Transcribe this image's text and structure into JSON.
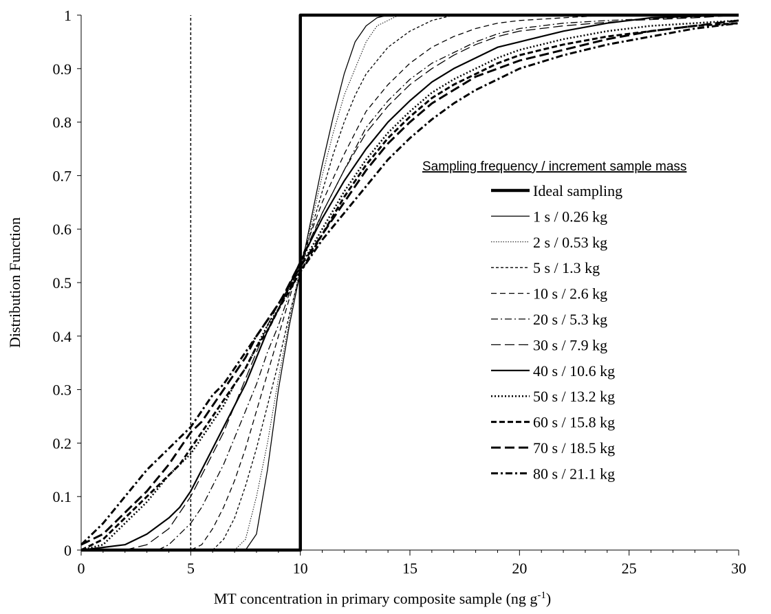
{
  "chart_data": {
    "type": "line",
    "xlabel": "MT concentration in primary composite sample (ng g",
    "xlabel_superscript": "-1",
    "xlabel_suffix": ")",
    "ylabel": "Distribution Function",
    "xlim": [
      0,
      30
    ],
    "ylim": [
      0,
      1
    ],
    "xticks": [
      "0",
      "5",
      "10",
      "15",
      "20",
      "25",
      "30"
    ],
    "yticks": [
      "0",
      "0.1",
      "0.2",
      "0.3",
      "0.4",
      "0.5",
      "0.6",
      "0.7",
      "0.8",
      "0.9",
      "1"
    ],
    "grid": false,
    "legend_title": "Sampling frequency / increment sample mass",
    "legend_position": "right",
    "reference_line": {
      "x": 5,
      "style": "dashed"
    },
    "series": [
      {
        "name": "Ideal sampling",
        "style": "ideal",
        "points": [
          [
            0,
            0
          ],
          [
            10,
            0
          ],
          [
            10,
            1
          ],
          [
            30,
            1
          ]
        ]
      },
      {
        "name": "1 s / 0.26 kg",
        "style": "thin-solid",
        "points": [
          [
            7.5,
            0
          ],
          [
            8,
            0.03
          ],
          [
            8.5,
            0.15
          ],
          [
            9,
            0.3
          ],
          [
            9.5,
            0.42
          ],
          [
            10,
            0.52
          ],
          [
            10.5,
            0.62
          ],
          [
            11,
            0.72
          ],
          [
            11.5,
            0.81
          ],
          [
            12,
            0.89
          ],
          [
            12.5,
            0.95
          ],
          [
            13,
            0.98
          ],
          [
            13.5,
            0.995
          ],
          [
            14,
            1
          ],
          [
            30,
            1
          ]
        ]
      },
      {
        "name": "2 s / 0.53 kg",
        "style": "dotted-thin",
        "points": [
          [
            7,
            0
          ],
          [
            7.5,
            0.02
          ],
          [
            8,
            0.1
          ],
          [
            8.5,
            0.2
          ],
          [
            9,
            0.32
          ],
          [
            9.5,
            0.43
          ],
          [
            10,
            0.53
          ],
          [
            10.5,
            0.61
          ],
          [
            11,
            0.7
          ],
          [
            11.5,
            0.78
          ],
          [
            12,
            0.85
          ],
          [
            12.5,
            0.9
          ],
          [
            13,
            0.95
          ],
          [
            13.5,
            0.98
          ],
          [
            14,
            0.99
          ],
          [
            14.5,
            1
          ],
          [
            30,
            1
          ]
        ]
      },
      {
        "name": "5 s / 1.3 kg",
        "style": "dashed-fine",
        "points": [
          [
            6,
            0
          ],
          [
            6.5,
            0.02
          ],
          [
            7,
            0.06
          ],
          [
            7.5,
            0.12
          ],
          [
            8,
            0.19
          ],
          [
            8.5,
            0.27
          ],
          [
            9,
            0.35
          ],
          [
            9.5,
            0.44
          ],
          [
            10,
            0.52
          ],
          [
            10.5,
            0.6
          ],
          [
            11,
            0.67
          ],
          [
            11.5,
            0.74
          ],
          [
            12,
            0.8
          ],
          [
            12.5,
            0.85
          ],
          [
            13,
            0.89
          ],
          [
            14,
            0.94
          ],
          [
            15,
            0.97
          ],
          [
            16,
            0.99
          ],
          [
            17,
            1
          ],
          [
            30,
            1
          ]
        ]
      },
      {
        "name": "10 s / 2.6 kg",
        "style": "dashed-med",
        "points": [
          [
            5,
            0
          ],
          [
            5.5,
            0.01
          ],
          [
            6,
            0.04
          ],
          [
            6.5,
            0.08
          ],
          [
            7,
            0.13
          ],
          [
            7.5,
            0.19
          ],
          [
            8,
            0.26
          ],
          [
            8.5,
            0.33
          ],
          [
            9,
            0.4
          ],
          [
            9.5,
            0.47
          ],
          [
            10,
            0.54
          ],
          [
            11,
            0.65
          ],
          [
            12,
            0.74
          ],
          [
            13,
            0.82
          ],
          [
            14,
            0.87
          ],
          [
            15,
            0.91
          ],
          [
            16,
            0.94
          ],
          [
            17,
            0.96
          ],
          [
            18,
            0.975
          ],
          [
            19,
            0.985
          ],
          [
            20,
            0.99
          ],
          [
            22,
            0.995
          ],
          [
            24,
            1
          ],
          [
            30,
            1
          ]
        ]
      },
      {
        "name": "20 s / 5.3 kg",
        "style": "dashdot-thin",
        "points": [
          [
            3.5,
            0
          ],
          [
            4,
            0.01
          ],
          [
            4.5,
            0.03
          ],
          [
            5,
            0.05
          ],
          [
            5.5,
            0.08
          ],
          [
            6,
            0.12
          ],
          [
            6.5,
            0.16
          ],
          [
            7,
            0.21
          ],
          [
            7.5,
            0.26
          ],
          [
            8,
            0.31
          ],
          [
            8.5,
            0.37
          ],
          [
            9,
            0.42
          ],
          [
            9.5,
            0.48
          ],
          [
            10,
            0.53
          ],
          [
            11,
            0.63
          ],
          [
            12,
            0.71
          ],
          [
            13,
            0.79
          ],
          [
            14,
            0.84
          ],
          [
            15,
            0.88
          ],
          [
            16,
            0.91
          ],
          [
            17,
            0.93
          ],
          [
            18,
            0.95
          ],
          [
            19,
            0.965
          ],
          [
            20,
            0.975
          ],
          [
            22,
            0.985
          ],
          [
            24,
            0.99
          ],
          [
            27,
            0.995
          ],
          [
            30,
            1
          ]
        ]
      },
      {
        "name": "30 s / 7.9 kg",
        "style": "longdash-thin",
        "points": [
          [
            2,
            0
          ],
          [
            3,
            0.01
          ],
          [
            4,
            0.04
          ],
          [
            4.5,
            0.07
          ],
          [
            5,
            0.1
          ],
          [
            5.5,
            0.14
          ],
          [
            6,
            0.18
          ],
          [
            6.5,
            0.22
          ],
          [
            7,
            0.27
          ],
          [
            7.5,
            0.32
          ],
          [
            8,
            0.37
          ],
          [
            8.5,
            0.42
          ],
          [
            9,
            0.46
          ],
          [
            10,
            0.54
          ],
          [
            11,
            0.63
          ],
          [
            12,
            0.71
          ],
          [
            13,
            0.78
          ],
          [
            14,
            0.83
          ],
          [
            15,
            0.87
          ],
          [
            16,
            0.9
          ],
          [
            17,
            0.925
          ],
          [
            18,
            0.945
          ],
          [
            19,
            0.96
          ],
          [
            20,
            0.97
          ],
          [
            22,
            0.98
          ],
          [
            25,
            0.99
          ],
          [
            28,
            0.995
          ],
          [
            30,
            1
          ]
        ]
      },
      {
        "name": "40 s / 10.6 kg",
        "style": "solid-med",
        "points": [
          [
            0,
            0
          ],
          [
            1,
            0.005
          ],
          [
            2,
            0.01
          ],
          [
            3,
            0.03
          ],
          [
            4,
            0.06
          ],
          [
            4.5,
            0.08
          ],
          [
            5,
            0.11
          ],
          [
            5.5,
            0.15
          ],
          [
            6,
            0.19
          ],
          [
            6.5,
            0.23
          ],
          [
            7,
            0.27
          ],
          [
            7.5,
            0.31
          ],
          [
            8,
            0.36
          ],
          [
            8.5,
            0.41
          ],
          [
            9,
            0.45
          ],
          [
            10,
            0.54
          ],
          [
            11,
            0.62
          ],
          [
            12,
            0.69
          ],
          [
            13,
            0.75
          ],
          [
            14,
            0.8
          ],
          [
            15,
            0.84
          ],
          [
            16,
            0.875
          ],
          [
            17,
            0.9
          ],
          [
            18,
            0.92
          ],
          [
            19,
            0.94
          ],
          [
            20,
            0.95
          ],
          [
            21,
            0.96
          ],
          [
            22,
            0.97
          ],
          [
            24,
            0.985
          ],
          [
            26,
            0.995
          ],
          [
            28,
            0.998
          ],
          [
            30,
            1
          ]
        ]
      },
      {
        "name": "50 s / 13.2 kg",
        "style": "dotted-med",
        "points": [
          [
            0,
            0
          ],
          [
            1,
            0.01
          ],
          [
            2,
            0.05
          ],
          [
            3,
            0.09
          ],
          [
            4,
            0.14
          ],
          [
            5,
            0.18
          ],
          [
            5.5,
            0.21
          ],
          [
            6,
            0.24
          ],
          [
            6.5,
            0.27
          ],
          [
            7,
            0.31
          ],
          [
            7.5,
            0.34
          ],
          [
            8,
            0.38
          ],
          [
            8.5,
            0.42
          ],
          [
            9,
            0.45
          ],
          [
            10,
            0.53
          ],
          [
            11,
            0.6
          ],
          [
            12,
            0.67
          ],
          [
            13,
            0.73
          ],
          [
            14,
            0.78
          ],
          [
            15,
            0.82
          ],
          [
            16,
            0.855
          ],
          [
            17,
            0.88
          ],
          [
            18,
            0.9
          ],
          [
            19,
            0.92
          ],
          [
            20,
            0.935
          ],
          [
            22,
            0.955
          ],
          [
            24,
            0.97
          ],
          [
            26,
            0.98
          ],
          [
            28,
            0.985
          ],
          [
            30,
            0.99
          ]
        ]
      },
      {
        "name": "60 s / 15.8 kg",
        "style": "dashed-thick",
        "points": [
          [
            0,
            0
          ],
          [
            1,
            0.02
          ],
          [
            2,
            0.06
          ],
          [
            3,
            0.1
          ],
          [
            4,
            0.14
          ],
          [
            4.5,
            0.16
          ],
          [
            5,
            0.19
          ],
          [
            5.5,
            0.22
          ],
          [
            6,
            0.25
          ],
          [
            6.5,
            0.28
          ],
          [
            7,
            0.31
          ],
          [
            7.5,
            0.34
          ],
          [
            8,
            0.38
          ],
          [
            8.5,
            0.41
          ],
          [
            9,
            0.45
          ],
          [
            10,
            0.52
          ],
          [
            11,
            0.59
          ],
          [
            12,
            0.66
          ],
          [
            13,
            0.72
          ],
          [
            14,
            0.77
          ],
          [
            15,
            0.81
          ],
          [
            16,
            0.845
          ],
          [
            17,
            0.87
          ],
          [
            18,
            0.89
          ],
          [
            19,
            0.91
          ],
          [
            20,
            0.925
          ],
          [
            22,
            0.945
          ],
          [
            24,
            0.96
          ],
          [
            26,
            0.97
          ],
          [
            28,
            0.98
          ],
          [
            30,
            0.985
          ]
        ]
      },
      {
        "name": "70 s / 18.5 kg",
        "style": "longdash-thick",
        "points": [
          [
            0,
            0.01
          ],
          [
            1,
            0.03
          ],
          [
            2,
            0.07
          ],
          [
            3,
            0.11
          ],
          [
            4,
            0.16
          ],
          [
            4.5,
            0.19
          ],
          [
            5,
            0.22
          ],
          [
            5.5,
            0.24
          ],
          [
            6,
            0.27
          ],
          [
            6.5,
            0.3
          ],
          [
            7,
            0.33
          ],
          [
            7.5,
            0.36
          ],
          [
            8,
            0.4
          ],
          [
            8.5,
            0.43
          ],
          [
            9,
            0.46
          ],
          [
            10,
            0.53
          ],
          [
            11,
            0.59
          ],
          [
            12,
            0.65
          ],
          [
            13,
            0.71
          ],
          [
            14,
            0.76
          ],
          [
            15,
            0.8
          ],
          [
            16,
            0.835
          ],
          [
            17,
            0.86
          ],
          [
            18,
            0.885
          ],
          [
            19,
            0.9
          ],
          [
            20,
            0.915
          ],
          [
            22,
            0.935
          ],
          [
            24,
            0.955
          ],
          [
            26,
            0.97
          ],
          [
            28,
            0.98
          ],
          [
            30,
            0.99
          ]
        ]
      },
      {
        "name": "80 s / 21.1 kg",
        "style": "dashdot-thick",
        "points": [
          [
            0,
            0.01
          ],
          [
            1,
            0.05
          ],
          [
            2,
            0.1
          ],
          [
            3,
            0.15
          ],
          [
            4,
            0.19
          ],
          [
            4.5,
            0.21
          ],
          [
            5,
            0.23
          ],
          [
            5.5,
            0.26
          ],
          [
            6,
            0.29
          ],
          [
            6.5,
            0.31
          ],
          [
            7,
            0.34
          ],
          [
            7.5,
            0.37
          ],
          [
            8,
            0.4
          ],
          [
            8.5,
            0.43
          ],
          [
            9,
            0.46
          ],
          [
            10,
            0.52
          ],
          [
            11,
            0.58
          ],
          [
            12,
            0.63
          ],
          [
            13,
            0.68
          ],
          [
            14,
            0.73
          ],
          [
            15,
            0.77
          ],
          [
            16,
            0.805
          ],
          [
            17,
            0.835
          ],
          [
            18,
            0.86
          ],
          [
            19,
            0.88
          ],
          [
            20,
            0.9
          ],
          [
            22,
            0.925
          ],
          [
            24,
            0.945
          ],
          [
            26,
            0.96
          ],
          [
            28,
            0.975
          ],
          [
            30,
            0.985
          ]
        ]
      }
    ]
  }
}
